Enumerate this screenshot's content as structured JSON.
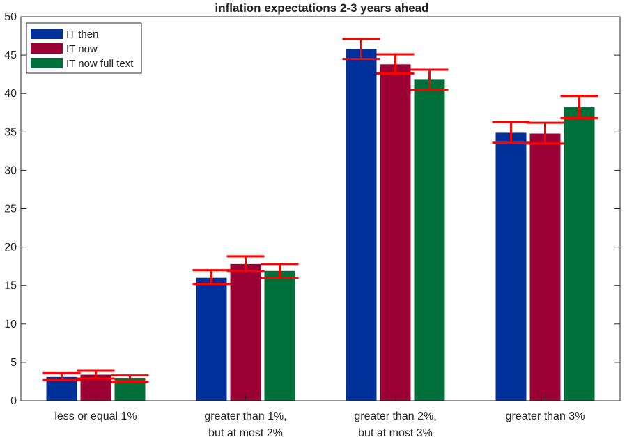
{
  "chart_data": {
    "type": "bar",
    "title": "inflation expectations 2-3 years ahead",
    "xlabel": "",
    "ylabel": "",
    "ylim": [
      0,
      50
    ],
    "yticks": [
      0,
      5,
      10,
      15,
      20,
      25,
      30,
      35,
      40,
      45,
      50
    ],
    "grid": false,
    "legend_position": "top-left",
    "categories": [
      [
        "less or equal 1%"
      ],
      [
        "greater than 1%,",
        "but at most 2%"
      ],
      [
        "greater than 2%,",
        "but at most 3%"
      ],
      [
        "greater than 3%"
      ]
    ],
    "series": [
      {
        "name": "IT then",
        "color": "#00309a",
        "values": [
          3.1,
          16.0,
          45.8,
          34.9
        ],
        "ci_low": [
          2.7,
          15.2,
          44.5,
          33.6
        ],
        "ci_high": [
          3.6,
          17.0,
          47.1,
          36.3
        ]
      },
      {
        "name": "IT now",
        "color": "#9b0035",
        "values": [
          3.4,
          17.8,
          43.8,
          34.8
        ],
        "ci_low": [
          2.9,
          16.9,
          42.6,
          33.5
        ],
        "ci_high": [
          3.9,
          18.8,
          45.1,
          36.2
        ]
      },
      {
        "name": "IT now full text",
        "color": "#00703a",
        "values": [
          2.9,
          16.9,
          41.8,
          38.2
        ],
        "ci_low": [
          2.5,
          16.0,
          40.5,
          36.8
        ],
        "ci_high": [
          3.3,
          17.8,
          43.1,
          39.7
        ]
      }
    ],
    "error_bar_color": "#ff0000"
  }
}
